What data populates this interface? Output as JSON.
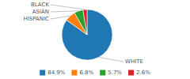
{
  "chart_data": {
    "type": "pie",
    "categories": [
      "WHITE",
      "HISPANIC",
      "ASIAN",
      "BLACK"
    ],
    "values": [
      84.9,
      6.8,
      5.7,
      2.6
    ],
    "value_labels": [
      "84.9%",
      "6.8%",
      "5.7%",
      "2.6%"
    ],
    "legend": "bottom"
  }
}
